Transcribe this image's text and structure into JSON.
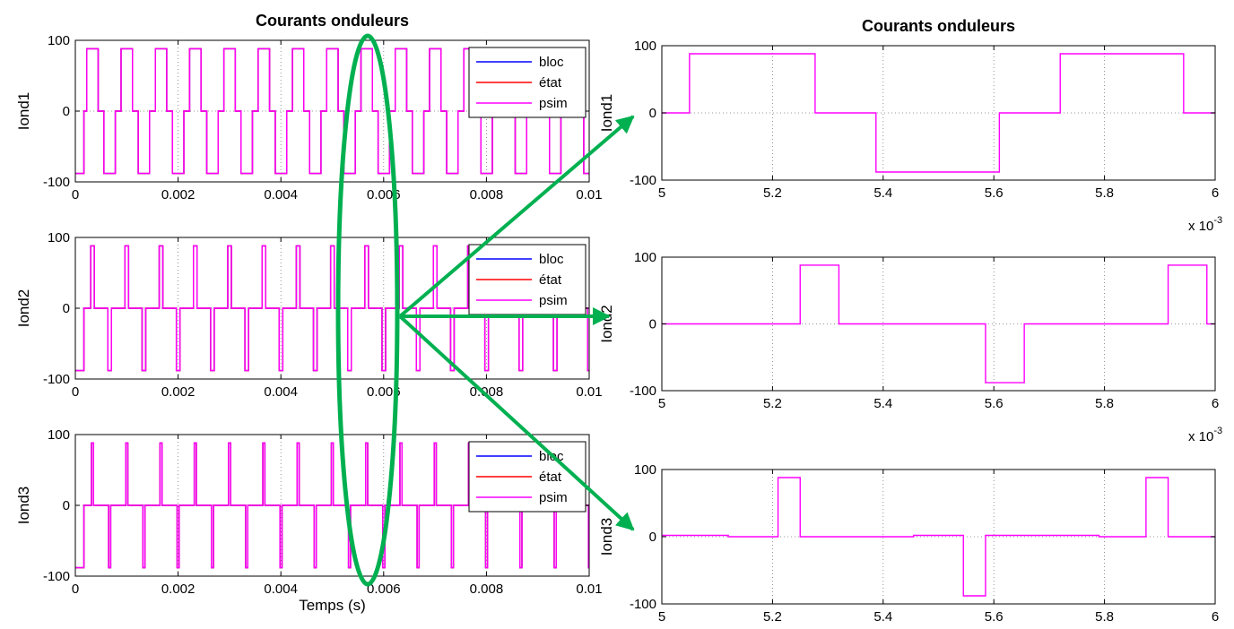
{
  "chart_data": [
    {
      "type": "line",
      "title": "Courants onduleurs",
      "xlabel": "",
      "ylabel": "Iond1",
      "xlim": [
        0,
        0.01
      ],
      "ylim": [
        -100,
        100
      ],
      "xticks": [
        "0",
        "0.002",
        "0.004",
        "0.006",
        "0.008",
        "0.01"
      ],
      "yticks": [
        "-100",
        "0",
        "100"
      ],
      "grid": true,
      "legend": {
        "placement": "top-right",
        "entries": [
          "bloc",
          "état",
          "psim"
        ]
      },
      "series": [
        {
          "name": "bloc",
          "color": "#0000ff"
        },
        {
          "name": "état",
          "color": "#ff0000"
        },
        {
          "name": "psim",
          "color": "#ff00ff"
        }
      ],
      "waveform": {
        "period": 0.000667,
        "amplitude": 88,
        "pulse_width": 0.000222,
        "phase": 0.000167
      }
    },
    {
      "type": "line",
      "title": "",
      "xlabel": "",
      "ylabel": "Iond2",
      "xlim": [
        0,
        0.01
      ],
      "ylim": [
        -100,
        100
      ],
      "xticks": [
        "0",
        "0.002",
        "0.004",
        "0.006",
        "0.008",
        "0.01"
      ],
      "yticks": [
        "-100",
        "0",
        "100"
      ],
      "grid": true,
      "legend": {
        "placement": "top-right",
        "entries": [
          "bloc",
          "état",
          "psim"
        ]
      },
      "series": [
        {
          "name": "bloc",
          "color": "#0000ff"
        },
        {
          "name": "état",
          "color": "#ff0000"
        },
        {
          "name": "psim",
          "color": "#ff00ff"
        }
      ],
      "waveform": {
        "period": 0.000667,
        "amplitude": 88,
        "pulse_width": 7e-05,
        "phase": 0.000167
      }
    },
    {
      "type": "line",
      "title": "",
      "xlabel": "Temps (s)",
      "ylabel": "Iond3",
      "xlim": [
        0,
        0.01
      ],
      "ylim": [
        -100,
        100
      ],
      "xticks": [
        "0",
        "0.002",
        "0.004",
        "0.006",
        "0.008",
        "0.01"
      ],
      "yticks": [
        "-100",
        "0",
        "100"
      ],
      "grid": true,
      "legend": {
        "placement": "top-right",
        "entries": [
          "bloc",
          "état",
          "psim"
        ]
      },
      "series": [
        {
          "name": "bloc",
          "color": "#0000ff"
        },
        {
          "name": "état",
          "color": "#ff0000"
        },
        {
          "name": "psim",
          "color": "#ff00ff"
        }
      ],
      "waveform": {
        "period": 0.000667,
        "amplitude": 88,
        "pulse_width": 4e-05,
        "phase": 0.000167
      }
    },
    {
      "type": "line",
      "title": "Courants onduleurs",
      "xlabel": "",
      "ylabel": "Iond1",
      "xlim": [
        5,
        6
      ],
      "ylim": [
        -100,
        100
      ],
      "xticks": [
        "5",
        "5.2",
        "5.4",
        "5.6",
        "5.8",
        "6"
      ],
      "yticks": [
        "-100",
        "0",
        "100"
      ],
      "x_multiplier": "x 10",
      "x_multiplier_exp": "-3",
      "grid": true,
      "series": [
        {
          "name": "psim",
          "color": "#ff00ff",
          "x": [
            5,
            5.05,
            5.05,
            5.277,
            5.277,
            5.387,
            5.387,
            5.61,
            5.61,
            5.72,
            5.72,
            5.943,
            5.943,
            6
          ],
          "y": [
            0,
            0,
            88,
            88,
            0,
            0,
            -88,
            -88,
            0,
            0,
            88,
            88,
            0,
            0
          ]
        }
      ]
    },
    {
      "type": "line",
      "title": "",
      "xlabel": "",
      "ylabel": "Iond2",
      "xlim": [
        5,
        6
      ],
      "ylim": [
        -100,
        100
      ],
      "xticks": [
        "5",
        "5.2",
        "5.4",
        "5.6",
        "5.8",
        "6"
      ],
      "yticks": [
        "-100",
        "0",
        "100"
      ],
      "x_multiplier": "x 10",
      "x_multiplier_exp": "-3",
      "grid": true,
      "series": [
        {
          "name": "psim",
          "color": "#ff00ff",
          "x": [
            5,
            5.25,
            5.25,
            5.32,
            5.32,
            5.585,
            5.585,
            5.655,
            5.655,
            5.915,
            5.915,
            5.985,
            5.985,
            6
          ],
          "y": [
            0,
            0,
            88,
            88,
            0,
            0,
            -88,
            -88,
            0,
            0,
            88,
            88,
            0,
            0
          ]
        }
      ]
    },
    {
      "type": "line",
      "title": "",
      "xlabel": "",
      "ylabel": "Iond3",
      "xlim": [
        5,
        6
      ],
      "ylim": [
        -100,
        100
      ],
      "xticks": [
        "5",
        "5.2",
        "5.4",
        "5.6",
        "5.8",
        "6"
      ],
      "yticks": [
        "-100",
        "0",
        "100"
      ],
      "grid": true,
      "series": [
        {
          "name": "psim",
          "color": "#ff00ff",
          "x": [
            5,
            5.12,
            5.12,
            5.21,
            5.21,
            5.25,
            5.25,
            5.455,
            5.455,
            5.545,
            5.545,
            5.585,
            5.585,
            5.79,
            5.79,
            5.875,
            5.875,
            5.915,
            5.915,
            6
          ],
          "y": [
            2,
            2,
            0,
            0,
            88,
            88,
            0,
            0,
            2,
            2,
            -88,
            -88,
            2,
            2,
            0,
            0,
            88,
            88,
            0,
            0
          ]
        }
      ]
    }
  ],
  "annotation_color": "#00b050"
}
